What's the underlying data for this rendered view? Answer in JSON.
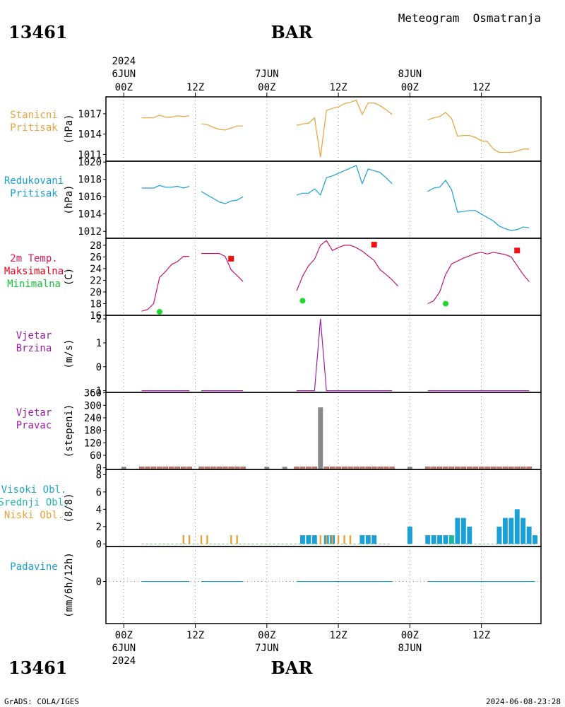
{
  "header": {
    "station_id": "13461",
    "station_name": "BAR",
    "title": "Meteogram  Osmatranja"
  },
  "footer": {
    "station_id": "13461",
    "station_name": "BAR",
    "credit": "GrADS: COLA/IGES",
    "timestamp": "2024-06-08-23:28"
  },
  "time_axis": {
    "top_year": "2024",
    "bottom_year": "2024",
    "ticks": [
      {
        "h": 0,
        "hour": "00Z",
        "date": "6JUN"
      },
      {
        "h": 12,
        "hour": "12Z",
        "date": ""
      },
      {
        "h": 24,
        "hour": "00Z",
        "date": "7JUN"
      },
      {
        "h": 36,
        "hour": "12Z",
        "date": ""
      },
      {
        "h": 48,
        "hour": "00Z",
        "date": "8JUN"
      },
      {
        "h": 60,
        "hour": "12Z",
        "date": ""
      }
    ],
    "hour_range": [
      -3,
      70
    ]
  },
  "chart_data": [
    {
      "type": "line",
      "panel": "station_pressure",
      "label_lines": [
        "Stanicni",
        "Pritisak"
      ],
      "ylabel": "(hPa)",
      "yticks": [
        1011,
        1014,
        1017
      ],
      "ylim": [
        1010,
        1019.5
      ],
      "color": "#e8a33a",
      "segments": [
        [
          [
            3,
            1016.4
          ],
          [
            4,
            1016.4
          ],
          [
            5,
            1016.4
          ],
          [
            6,
            1016.8
          ],
          [
            7,
            1016.5
          ],
          [
            8,
            1016.5
          ],
          [
            9,
            1016.7
          ],
          [
            10,
            1016.6
          ],
          [
            11,
            1016.7
          ]
        ],
        [
          [
            13,
            1015.5
          ],
          [
            14,
            1015.4
          ],
          [
            15,
            1015.0
          ],
          [
            16,
            1014.7
          ],
          [
            17,
            1014.6
          ],
          [
            18,
            1014.9
          ],
          [
            19,
            1015.2
          ],
          [
            20,
            1015.2
          ]
        ],
        [
          [
            29,
            1015.3
          ],
          [
            30,
            1015.5
          ],
          [
            31,
            1015.6
          ],
          [
            32,
            1016.4
          ],
          [
            33,
            1010.6
          ],
          [
            34,
            1017.5
          ],
          [
            35,
            1017.8
          ],
          [
            36,
            1018.0
          ],
          [
            37,
            1018.5
          ],
          [
            38,
            1018.7
          ],
          [
            39,
            1019.0
          ],
          [
            40,
            1016.9
          ],
          [
            41,
            1018.6
          ],
          [
            42,
            1018.6
          ],
          [
            43,
            1018.2
          ],
          [
            44,
            1017.6
          ],
          [
            45,
            1016.9
          ]
        ],
        [
          [
            51,
            1016.1
          ],
          [
            52,
            1016.4
          ],
          [
            53,
            1016.6
          ],
          [
            54,
            1017.2
          ],
          [
            55,
            1016.3
          ],
          [
            56,
            1013.7
          ],
          [
            57,
            1013.8
          ],
          [
            58,
            1013.8
          ],
          [
            59,
            1013.5
          ],
          [
            60,
            1013.0
          ],
          [
            61,
            1012.9
          ],
          [
            62,
            1011.8
          ],
          [
            63,
            1011.3
          ],
          [
            64,
            1011.3
          ],
          [
            65,
            1011.3
          ],
          [
            66,
            1011.5
          ],
          [
            67,
            1011.8
          ],
          [
            68,
            1011.8
          ]
        ]
      ]
    },
    {
      "type": "line",
      "panel": "reduced_pressure",
      "label_lines": [
        "Redukovani",
        "Pritisak"
      ],
      "ylabel": "(hPa)",
      "yticks": [
        1012,
        1014,
        1016,
        1018,
        1020
      ],
      "ylim": [
        1011.2,
        1020.1
      ],
      "color": "#1a9fd6",
      "segments": [
        [
          [
            3,
            1017.0
          ],
          [
            4,
            1017.0
          ],
          [
            5,
            1017.0
          ],
          [
            6,
            1017.3
          ],
          [
            7,
            1017.1
          ],
          [
            8,
            1017.1
          ],
          [
            9,
            1017.2
          ],
          [
            10,
            1017.0
          ],
          [
            11,
            1017.2
          ]
        ],
        [
          [
            13,
            1016.6
          ],
          [
            14,
            1016.2
          ],
          [
            15,
            1015.8
          ],
          [
            16,
            1015.4
          ],
          [
            17,
            1015.2
          ],
          [
            18,
            1015.5
          ],
          [
            19,
            1015.6
          ],
          [
            20,
            1016.0
          ]
        ],
        [
          [
            29,
            1016.2
          ],
          [
            30,
            1016.4
          ],
          [
            31,
            1016.4
          ],
          [
            32,
            1016.9
          ],
          [
            33,
            1016.2
          ],
          [
            34,
            1018.2
          ],
          [
            35,
            1018.4
          ],
          [
            36,
            1018.7
          ],
          [
            37,
            1019.0
          ],
          [
            38,
            1019.3
          ],
          [
            39,
            1019.6
          ],
          [
            40,
            1017.5
          ],
          [
            41,
            1019.2
          ],
          [
            42,
            1019.0
          ],
          [
            43,
            1018.8
          ],
          [
            44,
            1018.2
          ],
          [
            45,
            1017.5
          ]
        ],
        [
          [
            51,
            1016.6
          ],
          [
            52,
            1017.0
          ],
          [
            53,
            1017.1
          ],
          [
            54,
            1017.9
          ],
          [
            55,
            1016.8
          ],
          [
            56,
            1014.2
          ],
          [
            57,
            1014.3
          ],
          [
            58,
            1014.4
          ],
          [
            59,
            1014.4
          ],
          [
            60,
            1014.0
          ],
          [
            61,
            1013.6
          ],
          [
            62,
            1013.2
          ],
          [
            63,
            1012.6
          ],
          [
            64,
            1012.3
          ],
          [
            65,
            1012.1
          ],
          [
            66,
            1012.2
          ],
          [
            67,
            1012.5
          ],
          [
            68,
            1012.4
          ]
        ]
      ]
    },
    {
      "type": "line",
      "panel": "temperature",
      "label_lines": [
        "2m Temp.",
        "Maksimalna",
        "Minimalna"
      ],
      "label_colors": [
        "#e0195a",
        "#e8001e",
        "#17c238"
      ],
      "ylabel": "(C)",
      "yticks": [
        16,
        18,
        20,
        22,
        24,
        26,
        28
      ],
      "ylim": [
        16,
        29.2
      ],
      "color": "#c4166e",
      "segments": [
        [
          [
            3,
            16.7
          ],
          [
            4,
            17.0
          ],
          [
            5,
            18.0
          ],
          [
            6,
            22.5
          ],
          [
            7,
            23.5
          ],
          [
            8,
            24.7
          ],
          [
            9,
            25.2
          ],
          [
            10,
            26.1
          ],
          [
            11,
            26.1
          ]
        ],
        [
          [
            13,
            26.6
          ],
          [
            14,
            26.6
          ],
          [
            15,
            26.6
          ],
          [
            16,
            26.6
          ],
          [
            17,
            26.1
          ],
          [
            18,
            23.8
          ],
          [
            19,
            22.8
          ],
          [
            20,
            21.8
          ]
        ],
        [
          [
            29,
            20.2
          ],
          [
            30,
            22.7
          ],
          [
            31,
            24.5
          ],
          [
            32,
            25.6
          ],
          [
            33,
            28.0
          ],
          [
            34,
            28.8
          ],
          [
            35,
            27.1
          ],
          [
            36,
            27.6
          ],
          [
            37,
            28.0
          ],
          [
            38,
            28.0
          ],
          [
            39,
            27.6
          ],
          [
            40,
            27.0
          ],
          [
            41,
            26.2
          ],
          [
            42,
            25.4
          ],
          [
            43,
            23.8
          ],
          [
            44,
            23.0
          ],
          [
            45,
            22.1
          ],
          [
            46,
            21.0
          ]
        ],
        [
          [
            51,
            18.0
          ],
          [
            52,
            18.5
          ],
          [
            53,
            20.0
          ],
          [
            54,
            23.0
          ],
          [
            55,
            24.8
          ],
          [
            56,
            25.3
          ],
          [
            57,
            25.8
          ],
          [
            58,
            26.2
          ],
          [
            59,
            26.6
          ],
          [
            60,
            26.8
          ],
          [
            61,
            26.5
          ],
          [
            62,
            26.8
          ],
          [
            63,
            26.6
          ],
          [
            64,
            26.4
          ],
          [
            65,
            26.0
          ],
          [
            66,
            24.5
          ],
          [
            67,
            23.0
          ],
          [
            68,
            21.8
          ]
        ]
      ],
      "max_points": [
        [
          18,
          25.7
        ],
        [
          42,
          28.1
        ],
        [
          66,
          27.1
        ]
      ],
      "min_points": [
        [
          6,
          16.6
        ],
        [
          30,
          18.5
        ],
        [
          54,
          18.0
        ]
      ],
      "max_color": "#ee1111",
      "min_color": "#1ed830"
    },
    {
      "type": "line",
      "panel": "wind_speed",
      "label_lines": [
        "Vjetar",
        "Brzina"
      ],
      "ylabel": "(m/s)",
      "yticks": [
        -1,
        0,
        1,
        2
      ],
      "ylim": [
        -1.07,
        2.15
      ],
      "color": "#a020a8",
      "segments": [
        [
          [
            3,
            -1
          ],
          [
            11,
            -1
          ]
        ],
        [
          [
            13,
            -1
          ],
          [
            20,
            -1
          ]
        ],
        [
          [
            29,
            -1
          ],
          [
            32,
            -1
          ],
          [
            33,
            2
          ],
          [
            34,
            -1
          ],
          [
            45,
            -1
          ]
        ],
        [
          [
            51,
            -1
          ],
          [
            68,
            -1
          ]
        ]
      ]
    },
    {
      "type": "bar",
      "panel": "wind_direction",
      "label_lines": [
        "Vjetar",
        "Pravac"
      ],
      "ylabel": "(stepeni)",
      "yticks": [
        0,
        60,
        120,
        180,
        240,
        300,
        360
      ],
      "ylim": [
        -8,
        362
      ],
      "gray_color": "#888888",
      "calm_color": "#c77b6b",
      "gray_hours": [
        0,
        24,
        27,
        48
      ],
      "calm_hours": [
        3,
        4,
        5,
        6,
        7,
        8,
        9,
        10,
        11,
        13,
        14,
        15,
        16,
        17,
        18,
        19,
        20,
        29,
        30,
        31,
        32,
        34,
        35,
        36,
        37,
        38,
        39,
        40,
        41,
        42,
        43,
        44,
        45,
        51,
        52,
        53,
        54,
        55,
        56,
        57,
        58,
        59,
        60,
        61,
        62,
        63,
        64,
        65,
        66,
        67,
        68
      ],
      "direction_bars": [
        [
          33,
          290
        ]
      ]
    },
    {
      "type": "bar",
      "panel": "clouds",
      "label_lines": [
        "Visoki Obl.",
        "Srednji Obl.",
        "Niski Obl."
      ],
      "label_colors": [
        "#22a8c8",
        "#22b8b0",
        "#e8a33a"
      ],
      "ylabel": "(8/8)",
      "yticks": [
        0,
        2,
        4,
        6,
        8
      ],
      "ylim": [
        -0.3,
        8.6
      ],
      "high_color": "#1a9fd6",
      "mid_color": "#18b89c",
      "low_color": "#e8a33a",
      "high": [
        [
          30,
          1
        ],
        [
          31,
          1
        ],
        [
          32,
          1
        ],
        [
          34,
          1
        ],
        [
          35,
          1
        ],
        [
          40,
          1
        ],
        [
          41,
          1
        ],
        [
          42,
          1
        ],
        [
          48,
          2
        ],
        [
          51,
          1
        ],
        [
          52,
          1
        ],
        [
          53,
          1
        ],
        [
          54,
          1
        ],
        [
          56,
          3
        ],
        [
          57,
          3
        ],
        [
          58,
          2
        ],
        [
          63,
          2
        ],
        [
          64,
          3
        ],
        [
          65,
          3
        ],
        [
          66,
          4
        ],
        [
          67,
          3
        ],
        [
          68,
          2
        ],
        [
          69,
          1
        ]
      ],
      "mid": [
        [
          55,
          1
        ]
      ],
      "low": [
        [
          10,
          1
        ],
        [
          11,
          1
        ],
        [
          13,
          1
        ],
        [
          14,
          1
        ],
        [
          18,
          1
        ],
        [
          19,
          1
        ],
        [
          33,
          1
        ],
        [
          34,
          1
        ],
        [
          35,
          1
        ],
        [
          36,
          1
        ],
        [
          37,
          1
        ],
        [
          38,
          1
        ]
      ]
    },
    {
      "type": "line",
      "panel": "precipitation",
      "label_lines": [
        "Padavine"
      ],
      "label_colors": [
        "#1a9fd6"
      ],
      "ylabel": "(mm/6h/12h)",
      "yticks": [
        0
      ],
      "ylim": [
        -1.2,
        1
      ],
      "color": "#1a9fd6",
      "segments": [
        [
          [
            3,
            0
          ],
          [
            11,
            0
          ]
        ],
        [
          [
            13,
            0
          ],
          [
            20,
            0
          ]
        ],
        [
          [
            29,
            0
          ],
          [
            45,
            0
          ]
        ],
        [
          [
            51,
            0
          ],
          [
            69,
            0
          ]
        ]
      ]
    }
  ]
}
